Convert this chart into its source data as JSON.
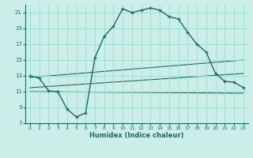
{
  "title": "",
  "xlabel": "Humidex (Indice chaleur)",
  "bg_color": "#cceee8",
  "grid_color": "#99ddcc",
  "line_color": "#1a6b5a",
  "xlim": [
    -0.5,
    23.5
  ],
  "ylim": [
    7,
    22
  ],
  "yticks": [
    7,
    9,
    11,
    13,
    15,
    17,
    19,
    21
  ],
  "xticks": [
    0,
    1,
    2,
    3,
    4,
    5,
    6,
    7,
    8,
    9,
    10,
    11,
    12,
    13,
    14,
    15,
    16,
    17,
    18,
    19,
    20,
    21,
    22,
    23
  ],
  "main_x": [
    0,
    1,
    2,
    3,
    4,
    5,
    6,
    7,
    8,
    9,
    10,
    11,
    12,
    13,
    14,
    15,
    16,
    17,
    18,
    19,
    20,
    21,
    22,
    23
  ],
  "main_y": [
    13.0,
    12.7,
    11.1,
    11.0,
    8.8,
    7.8,
    8.3,
    15.3,
    18.0,
    19.3,
    21.5,
    21.0,
    21.3,
    21.6,
    21.3,
    20.5,
    20.2,
    18.5,
    17.0,
    16.0,
    13.3,
    12.3,
    12.2,
    11.5
  ],
  "line2_x": [
    0,
    23
  ],
  "line2_y": [
    12.8,
    15.0
  ],
  "line3_x": [
    0,
    23
  ],
  "line3_y": [
    11.5,
    13.3
  ],
  "line4_x": [
    0,
    23
  ],
  "line4_y": [
    11.0,
    10.8
  ]
}
